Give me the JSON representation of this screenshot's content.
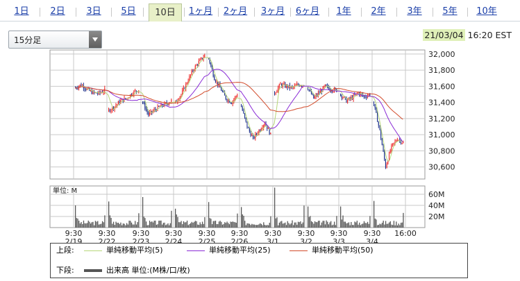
{
  "tabs": [
    {
      "label": "1日",
      "active": false
    },
    {
      "label": "2日",
      "active": false
    },
    {
      "label": "3日",
      "active": false
    },
    {
      "label": "5日",
      "active": false
    },
    {
      "label": "10日",
      "active": true
    },
    {
      "label": "1ヶ月",
      "active": false
    },
    {
      "label": "2ヶ月",
      "active": false
    },
    {
      "label": "3ヶ月",
      "active": false
    },
    {
      "label": "6ヶ月",
      "active": false
    },
    {
      "label": "1年",
      "active": false
    },
    {
      "label": "2年",
      "active": false
    },
    {
      "label": "3年",
      "active": false
    },
    {
      "label": "5年",
      "active": false
    },
    {
      "label": "10年",
      "active": false
    }
  ],
  "interval_select": {
    "value": "15分足"
  },
  "timestamp": {
    "date": "21/03/04",
    "time": "16:20 EST"
  },
  "colors": {
    "up": "#ee2222",
    "down": "#1a2f8a",
    "ma5": "#b7d77a",
    "ma25": "#8a2bd6",
    "ma50": "#d24a2a",
    "volume": "#555555",
    "grid": "#c9c9c9",
    "tab_active_bg": "#e8f0c8"
  },
  "legend": {
    "upper_label": "上段:",
    "lower_label": "下段:",
    "items": [
      {
        "label": "単純移動平均(5)"
      },
      {
        "label": "単純移動平均(25)"
      },
      {
        "label": "単純移動平均(50)"
      }
    ],
    "volume_label": "出来高 単位:(M株/口/枚)"
  },
  "chart_data": [
    {
      "type": "candlestick",
      "ylim": [
        30450,
        32050
      ],
      "y_ticks": [
        "32,000",
        "31,800",
        "31,600",
        "31,400",
        "31,200",
        "31,000",
        "30,800",
        "30,600"
      ],
      "y_tick_values": [
        32000,
        31800,
        31600,
        31400,
        31200,
        31000,
        30800,
        30600
      ],
      "x_sessions": [
        "2/19",
        "2/22",
        "2/23",
        "2/24",
        "2/25",
        "2/26",
        "3/1",
        "3/2",
        "3/3",
        "3/4"
      ],
      "x_tick_top": [
        "9:30",
        "9:30",
        "9:30",
        "9:30",
        "9:30",
        "9:30",
        "9:30",
        "9:30",
        "9:30",
        "9:30",
        "16:00"
      ],
      "x_tick_bottom": [
        "2/19",
        "2/22",
        "2/23",
        "2/24",
        "2/25",
        "2/26",
        "3/1",
        "3/2",
        "3/3",
        "3/4",
        ""
      ],
      "session_closes": [
        [
          31580,
          31620,
          31560,
          31520,
          31510,
          31550
        ],
        [
          31300,
          31350,
          31420,
          31450,
          31520,
          31560
        ],
        [
          31400,
          31250,
          31300,
          31350,
          31380,
          31420
        ],
        [
          31400,
          31500,
          31650,
          31800,
          31900,
          31980
        ],
        [
          31950,
          31700,
          31580,
          31450,
          31400,
          31500
        ],
        [
          31350,
          31100,
          30950,
          31050,
          31150,
          31000
        ],
        [
          31520,
          31620,
          31600,
          31580,
          31620,
          31620
        ],
        [
          31580,
          31450,
          31520,
          31600,
          31560,
          31550
        ],
        [
          31500,
          31420,
          31460,
          31520,
          31470,
          31500
        ],
        [
          31380,
          31050,
          30600,
          30850,
          30950,
          30900
        ]
      ],
      "series": [
        {
          "name": "単純移動平均(5)",
          "key": "ma5",
          "window": 5
        },
        {
          "name": "単純移動平均(25)",
          "key": "ma25",
          "window": 25
        },
        {
          "name": "単純移動平均(50)",
          "key": "ma50",
          "window": 50
        }
      ]
    },
    {
      "type": "bar",
      "name": "出来高",
      "unit_label": "単位: M",
      "ylim": [
        0,
        75
      ],
      "y_ticks": [
        "60M",
        "40M",
        "20M"
      ],
      "y_tick_values": [
        60,
        40,
        20
      ],
      "session_spikes": [
        40,
        47,
        55,
        34,
        46,
        37,
        72,
        38,
        38,
        48
      ]
    }
  ]
}
